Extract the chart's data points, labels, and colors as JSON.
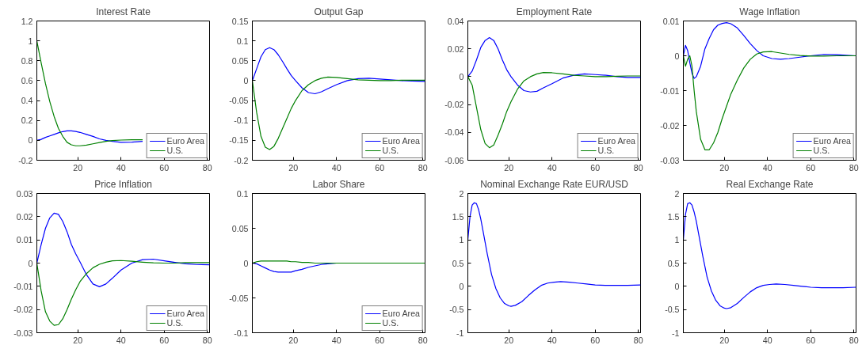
{
  "chart_data": [
    {
      "type": "line",
      "title": "Interest Rate",
      "x": [
        1,
        3,
        5,
        7,
        9,
        11,
        13,
        15,
        17,
        19,
        21,
        24,
        27,
        30,
        33,
        36,
        40,
        45,
        50
      ],
      "xlim": [
        1,
        81
      ],
      "xticks": [
        20,
        40,
        60,
        80
      ],
      "ylim": [
        -0.2,
        1.2
      ],
      "yticks": [
        -0.2,
        0,
        0.2,
        0.4,
        0.6,
        0.8,
        1,
        1.2
      ],
      "grid": false,
      "legend": "bottom right",
      "line_style": "solid",
      "marker": "none",
      "series": [
        {
          "name": "Euro Area",
          "color": "#0000ff",
          "values": [
            0,
            0.01,
            0.03,
            0.045,
            0.06,
            0.075,
            0.088,
            0.095,
            0.095,
            0.09,
            0.08,
            0.06,
            0.04,
            0.015,
            0,
            -0.01,
            -0.02,
            -0.018,
            -0.01
          ]
        },
        {
          "name": "U.S.",
          "color": "#008000",
          "values": [
            1.0,
            0.78,
            0.57,
            0.39,
            0.24,
            0.12,
            0.04,
            -0.02,
            -0.045,
            -0.055,
            -0.055,
            -0.048,
            -0.035,
            -0.022,
            -0.01,
            -0.002,
            0.003,
            0.006,
            0.006
          ]
        }
      ]
    },
    {
      "type": "line",
      "title": "Output Gap",
      "x": [
        1,
        3,
        5,
        7,
        9,
        11,
        13,
        15,
        17,
        19,
        21,
        24,
        27,
        30,
        33,
        36,
        40,
        45,
        50,
        55,
        60,
        65,
        70,
        75,
        81
      ],
      "xlim": [
        1,
        81
      ],
      "xticks": [
        20,
        40,
        60,
        80
      ],
      "ylim": [
        -0.2,
        0.15
      ],
      "yticks": [
        -0.2,
        -0.15,
        -0.1,
        -0.05,
        0,
        0.05,
        0.1,
        0.15
      ],
      "grid": false,
      "legend": "bottom right",
      "line_style": "solid",
      "marker": "none",
      "series": [
        {
          "name": "Euro Area",
          "color": "#0000ff",
          "values": [
            0,
            0.03,
            0.06,
            0.078,
            0.083,
            0.078,
            0.065,
            0.048,
            0.03,
            0.013,
            0,
            -0.018,
            -0.03,
            -0.033,
            -0.028,
            -0.02,
            -0.01,
            0,
            0.005,
            0.006,
            0.004,
            0.002,
            0,
            -0.001,
            -0.002
          ]
        },
        {
          "name": "U.S.",
          "color": "#008000",
          "values": [
            0,
            -0.08,
            -0.14,
            -0.167,
            -0.173,
            -0.165,
            -0.145,
            -0.12,
            -0.095,
            -0.07,
            -0.05,
            -0.025,
            -0.01,
            0,
            0.006,
            0.009,
            0.008,
            0.005,
            0.002,
            0.001,
            0,
            0,
            0.001,
            0.001,
            0.001
          ]
        }
      ]
    },
    {
      "type": "line",
      "title": "Employment Rate",
      "x": [
        1,
        3,
        5,
        7,
        9,
        11,
        13,
        15,
        17,
        19,
        21,
        24,
        27,
        30,
        33,
        36,
        40,
        45,
        50,
        55,
        60,
        65,
        70,
        75,
        81
      ],
      "xlim": [
        1,
        81
      ],
      "xticks": [
        20,
        40,
        60,
        80
      ],
      "ylim": [
        -0.06,
        0.04
      ],
      "yticks": [
        -0.06,
        -0.04,
        -0.02,
        0,
        0.02,
        0.04
      ],
      "grid": false,
      "legend": "bottom right",
      "line_style": "solid",
      "marker": "none",
      "series": [
        {
          "name": "Euro Area",
          "color": "#0000ff",
          "values": [
            0,
            0.004,
            0.012,
            0.021,
            0.026,
            0.028,
            0.026,
            0.02,
            0.012,
            0.005,
            0,
            -0.006,
            -0.01,
            -0.011,
            -0.0105,
            -0.008,
            -0.005,
            -0.001,
            0.001,
            0.002,
            0.0015,
            0.001,
            0,
            -0.0005,
            -0.0005
          ]
        },
        {
          "name": "U.S.",
          "color": "#008000",
          "values": [
            0,
            -0.006,
            -0.022,
            -0.038,
            -0.048,
            -0.051,
            -0.049,
            -0.042,
            -0.034,
            -0.025,
            -0.018,
            -0.009,
            -0.003,
            0,
            0.002,
            0.003,
            0.0028,
            0.002,
            0.001,
            0.0005,
            0,
            0,
            0.0003,
            0.0005,
            0.0005
          ]
        }
      ]
    },
    {
      "type": "line",
      "title": "Wage Inflation",
      "x": [
        1,
        2,
        3,
        4,
        5,
        6,
        7,
        9,
        11,
        13,
        15,
        17,
        19,
        21,
        23,
        26,
        29,
        32,
        35,
        38,
        42,
        46,
        50,
        55,
        60,
        66,
        72,
        81
      ],
      "xlim": [
        1,
        81
      ],
      "xticks": [
        20,
        40,
        60,
        80
      ],
      "ylim": [
        -0.03,
        0.01
      ],
      "yticks": [
        -0.03,
        -0.02,
        -0.01,
        0,
        0.01
      ],
      "grid": false,
      "legend": "bottom right",
      "line_style": "solid",
      "marker": "none",
      "series": [
        {
          "name": "Euro Area",
          "color": "#0000ff",
          "values": [
            0,
            0.003,
            0.0015,
            -0.002,
            -0.005,
            -0.0065,
            -0.006,
            -0.003,
            0.002,
            0.005,
            0.0075,
            0.0088,
            0.0093,
            0.0095,
            0.0092,
            0.008,
            0.0058,
            0.0035,
            0.0015,
            0,
            -0.0008,
            -0.001,
            -0.0008,
            -0.0004,
            0,
            0.0004,
            0.0003,
            0
          ]
        },
        {
          "name": "U.S.",
          "color": "#008000",
          "values": [
            0,
            -0.003,
            -0.001,
            0,
            -0.003,
            -0.01,
            -0.016,
            -0.024,
            -0.027,
            -0.027,
            -0.025,
            -0.022,
            -0.018,
            -0.0145,
            -0.011,
            -0.007,
            -0.0035,
            -0.001,
            0.0005,
            0.0011,
            0.0012,
            0.0008,
            0.0004,
            0.0001,
            -0.0001,
            -0.0001,
            0,
            0
          ]
        }
      ]
    },
    {
      "type": "line",
      "title": "Price Inflation",
      "x": [
        1,
        3,
        5,
        7,
        9,
        11,
        13,
        15,
        17,
        19,
        21,
        24,
        27,
        30,
        33,
        36,
        40,
        45,
        50,
        55,
        60,
        65,
        70,
        75,
        81
      ],
      "xlim": [
        1,
        81
      ],
      "xticks": [
        20,
        40,
        60,
        80
      ],
      "ylim": [
        -0.03,
        0.03
      ],
      "yticks": [
        -0.03,
        -0.02,
        -0.01,
        0,
        0.01,
        0.02,
        0.03
      ],
      "grid": false,
      "legend": "bottom right",
      "line_style": "solid",
      "marker": "none",
      "series": [
        {
          "name": "Euro Area",
          "color": "#0000ff",
          "values": [
            0,
            0.008,
            0.015,
            0.0195,
            0.0215,
            0.021,
            0.018,
            0.0135,
            0.008,
            0.004,
            0.0005,
            -0.005,
            -0.009,
            -0.0102,
            -0.009,
            -0.0065,
            -0.003,
            0,
            0.0015,
            0.0017,
            0.001,
            0.0003,
            -0.0003,
            -0.0006,
            -0.0007
          ]
        },
        {
          "name": "U.S.",
          "color": "#008000",
          "values": [
            0,
            -0.012,
            -0.021,
            -0.025,
            -0.0268,
            -0.0265,
            -0.024,
            -0.02,
            -0.0155,
            -0.0115,
            -0.008,
            -0.0045,
            -0.002,
            -0.0005,
            0.0004,
            0.001,
            0.0011,
            0.0008,
            0.0004,
            0.0001,
            0,
            0,
            0.0002,
            0.0002,
            0.0002
          ]
        }
      ]
    },
    {
      "type": "line",
      "title": "Labor Share",
      "x": [
        1,
        3,
        5,
        7,
        9,
        11,
        13,
        15,
        17,
        19,
        21,
        24,
        27,
        30,
        33,
        36,
        40,
        45,
        50,
        55,
        60,
        65,
        70,
        75,
        81
      ],
      "xlim": [
        1,
        81
      ],
      "xticks": [
        20,
        40,
        60,
        80
      ],
      "ylim": [
        -0.1,
        0.1
      ],
      "yticks": [
        -0.1,
        -0.05,
        0,
        0.05,
        0.1
      ],
      "grid": false,
      "legend": "bottom right",
      "line_style": "solid",
      "marker": "none",
      "series": [
        {
          "name": "Euro Area",
          "color": "#0000ff",
          "values": [
            0,
            -0.001,
            -0.004,
            -0.007,
            -0.01,
            -0.012,
            -0.013,
            -0.013,
            -0.013,
            -0.013,
            -0.011,
            -0.009,
            -0.006,
            -0.004,
            -0.002,
            -0.001,
            0,
            null,
            null,
            null,
            null,
            null,
            null,
            null,
            null
          ]
        },
        {
          "name": "U.S.",
          "color": "#008000",
          "values": [
            0,
            0.002,
            0.003,
            0.003,
            0.003,
            0.003,
            0.003,
            0.003,
            0.003,
            0.002,
            0.002,
            0.001,
            0.001,
            0,
            0,
            0,
            0,
            0,
            0,
            0,
            0,
            0,
            0,
            0,
            0
          ]
        }
      ]
    },
    {
      "type": "line",
      "title": "Nominal Exchange Rate EUR/USD",
      "x": [
        1,
        2,
        3,
        4,
        5,
        6,
        7,
        8,
        10,
        12,
        14,
        16,
        18,
        20,
        21,
        23,
        26,
        29,
        32,
        35,
        38,
        41,
        44,
        48,
        52,
        56,
        60,
        65,
        70,
        75,
        81
      ],
      "xlim": [
        1,
        81
      ],
      "xticks": [
        20,
        40,
        60,
        80
      ],
      "ylim": [
        -1,
        2
      ],
      "yticks": [
        -1,
        -0.5,
        0,
        0.5,
        1,
        1.5,
        2
      ],
      "grid": false,
      "line_style": "solid",
      "marker": "none",
      "series": [
        {
          "color": "#0000ff",
          "values": [
            1.0,
            1.5,
            1.75,
            1.8,
            1.78,
            1.65,
            1.45,
            1.2,
            0.7,
            0.25,
            -0.05,
            -0.25,
            -0.37,
            -0.42,
            -0.43,
            -0.41,
            -0.33,
            -0.2,
            -0.08,
            0.02,
            0.07,
            0.09,
            0.1,
            0.09,
            0.07,
            0.05,
            0.03,
            0.02,
            0.02,
            0.02,
            0.03
          ]
        }
      ]
    },
    {
      "type": "line",
      "title": "Real Exchange Rate",
      "x": [
        1,
        2,
        3,
        4,
        5,
        6,
        7,
        8,
        10,
        12,
        14,
        16,
        18,
        20,
        21,
        23,
        26,
        29,
        32,
        35,
        38,
        41,
        44,
        48,
        52,
        56,
        60,
        65,
        70,
        75,
        81
      ],
      "xlim": [
        1,
        81
      ],
      "xticks": [
        20,
        40,
        60,
        80
      ],
      "ylim": [
        -1,
        2
      ],
      "yticks": [
        -1,
        -0.5,
        0,
        0.5,
        1,
        1.5,
        2
      ],
      "grid": false,
      "line_style": "solid",
      "marker": "none",
      "series": [
        {
          "color": "#0000ff",
          "values": [
            1.0,
            1.55,
            1.78,
            1.8,
            1.75,
            1.6,
            1.4,
            1.15,
            0.65,
            0.2,
            -0.1,
            -0.3,
            -0.42,
            -0.47,
            -0.48,
            -0.46,
            -0.37,
            -0.24,
            -0.12,
            -0.03,
            0.02,
            0.04,
            0.05,
            0.04,
            0.02,
            0,
            -0.02,
            -0.03,
            -0.03,
            -0.03,
            -0.02
          ]
        }
      ]
    }
  ]
}
